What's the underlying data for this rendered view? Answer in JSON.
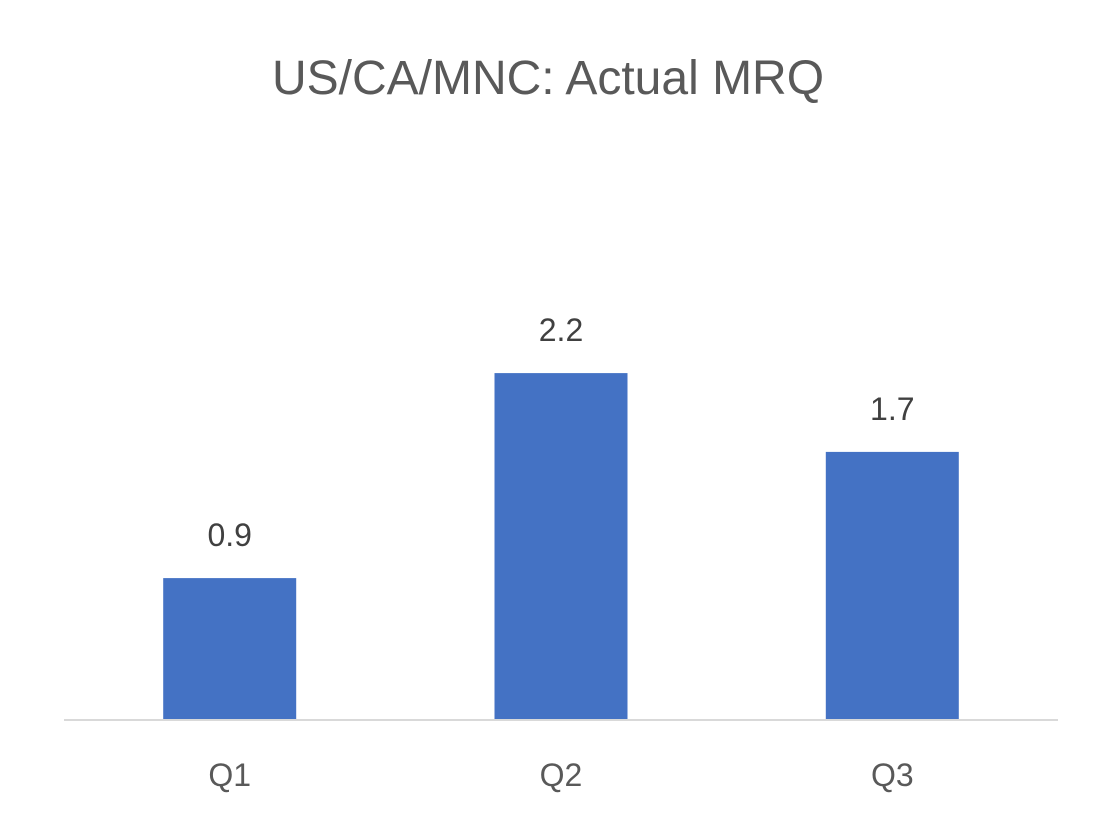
{
  "chart_data": {
    "type": "bar",
    "title": "US/CA/MNC: Actual MRQ",
    "categories": [
      "Q1",
      "Q2",
      "Q3"
    ],
    "values": [
      0.9,
      2.2,
      1.7
    ],
    "data_labels": [
      "0.9",
      "2.2",
      "1.7"
    ],
    "xlabel": "",
    "ylabel": "",
    "ylim": [
      0,
      2.6
    ],
    "grid": false,
    "legend": "none",
    "y_axis_visible": false
  },
  "colors": {
    "bar": "#4472C4",
    "axis_line": "#D9D9D9",
    "title": "#595959",
    "data_label": "#404040",
    "tick_label": "#595959",
    "background": "#FFFFFF"
  }
}
